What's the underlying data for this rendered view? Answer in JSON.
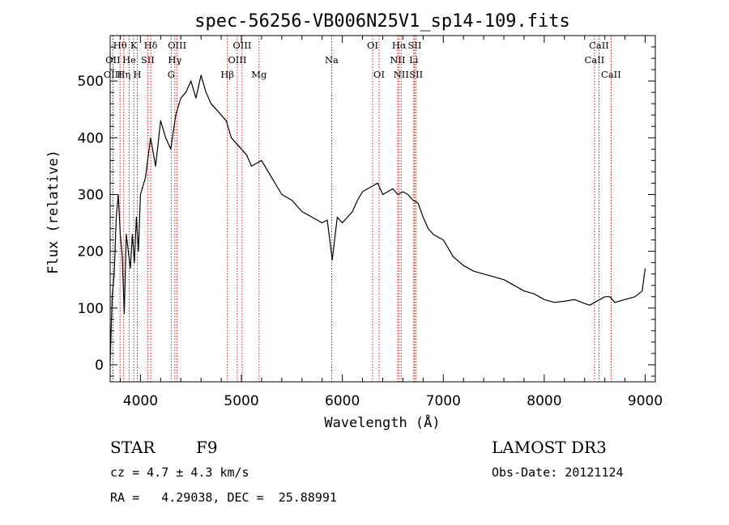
{
  "chart_data": {
    "type": "line",
    "title": "spec-56256-VB006N25V1_sp14-109.fits",
    "xlabel": "Wavelength (Å)",
    "ylabel": "Flux (relative)",
    "xlim": [
      3700,
      9100
    ],
    "ylim": [
      -30,
      580
    ],
    "xticks": [
      4000,
      5000,
      6000,
      7000,
      8000,
      9000
    ],
    "yticks": [
      0,
      100,
      200,
      300,
      400,
      500
    ],
    "grid": false,
    "series": [
      {
        "x": [
          3700,
          3720,
          3740,
          3760,
          3780,
          3800,
          3820,
          3840,
          3860,
          3880,
          3900,
          3920,
          3940,
          3960,
          3980,
          4000,
          4050,
          4100,
          4150,
          4200,
          4250,
          4300,
          4350,
          4400,
          4450,
          4500,
          4550,
          4600,
          4650,
          4700,
          4750,
          4800,
          4850,
          4900,
          4950,
          5000,
          5050,
          5100,
          5200,
          5300,
          5400,
          5500,
          5600,
          5700,
          5800,
          5850,
          5900,
          5950,
          6000,
          6050,
          6100,
          6150,
          6200,
          6250,
          6300,
          6350,
          6400,
          6450,
          6500,
          6550,
          6600,
          6650,
          6700,
          6750,
          6800,
          6850,
          6900,
          6950,
          7000,
          7100,
          7200,
          7300,
          7400,
          7500,
          7600,
          7700,
          7800,
          7900,
          8000,
          8100,
          8200,
          8300,
          8400,
          8450,
          8500,
          8550,
          8600,
          8650,
          8700,
          8800,
          8900,
          8970,
          9000
        ],
        "y": [
          5,
          120,
          160,
          260,
          300,
          230,
          190,
          90,
          230,
          200,
          170,
          230,
          180,
          260,
          200,
          300,
          330,
          400,
          350,
          430,
          400,
          380,
          440,
          470,
          480,
          500,
          470,
          510,
          480,
          460,
          450,
          440,
          430,
          400,
          390,
          380,
          370,
          350,
          360,
          330,
          300,
          290,
          270,
          260,
          250,
          255,
          185,
          260,
          250,
          260,
          270,
          290,
          305,
          310,
          315,
          320,
          300,
          305,
          310,
          300,
          305,
          300,
          290,
          285,
          260,
          240,
          230,
          225,
          220,
          190,
          175,
          165,
          160,
          155,
          150,
          140,
          130,
          125,
          115,
          110,
          112,
          115,
          108,
          105,
          110,
          115,
          120,
          120,
          110,
          115,
          120,
          130,
          170
        ]
      }
    ],
    "line_markers": [
      {
        "label": "Hθ",
        "x": 3798,
        "row": 0
      },
      {
        "label": "OII",
        "x": 3727,
        "row": 1
      },
      {
        "label": "OIII",
        "x": 3727,
        "row": 2
      },
      {
        "label": "Hη",
        "x": 3835,
        "row": 2
      },
      {
        "label": "He",
        "x": 3889,
        "row": 1
      },
      {
        "label": "K",
        "x": 3934,
        "row": 0
      },
      {
        "label": "H",
        "x": 3969,
        "row": 2
      },
      {
        "label": "SII",
        "x": 4072,
        "row": 1
      },
      {
        "label": "Hδ",
        "x": 4102,
        "row": 0
      },
      {
        "label": "G",
        "x": 4305,
        "row": 2
      },
      {
        "label": "Hγ",
        "x": 4341,
        "row": 1
      },
      {
        "label": "OIII",
        "x": 4363,
        "row": 0
      },
      {
        "label": "Hβ",
        "x": 4861,
        "row": 2
      },
      {
        "label": "OIII",
        "x": 4959,
        "row": 1
      },
      {
        "label": "OIII",
        "x": 5007,
        "row": 0
      },
      {
        "label": "Mg",
        "x": 5175,
        "row": 2
      },
      {
        "label": "Na",
        "x": 5894,
        "row": 1
      },
      {
        "label": "OI",
        "x": 6300,
        "row": 0
      },
      {
        "label": "OI",
        "x": 6364,
        "row": 2
      },
      {
        "label": "NII",
        "x": 6548,
        "row": 1
      },
      {
        "label": "Hα",
        "x": 6563,
        "row": 0
      },
      {
        "label": "NII",
        "x": 6583,
        "row": 2
      },
      {
        "label": "Li",
        "x": 6707,
        "row": 1
      },
      {
        "label": "SII",
        "x": 6717,
        "row": 0
      },
      {
        "label": "SII",
        "x": 6731,
        "row": 2
      },
      {
        "label": "CaII",
        "x": 8498,
        "row": 1
      },
      {
        "label": "CaII",
        "x": 8542,
        "row": 0
      },
      {
        "label": "CaII",
        "x": 8662,
        "row": 2
      }
    ]
  },
  "info": {
    "object_class": "STAR",
    "subclass": "F9",
    "survey": "LAMOST DR3",
    "cz": "cz = 4.7 ± 4.3 km/s",
    "obs_date": "Obs-Date: 20121124",
    "coords": "RA =   4.29038, DEC =  25.88991"
  },
  "colors": {
    "spectrum": "#000000",
    "marker_line": "#cc0000",
    "axes": "#000000"
  }
}
